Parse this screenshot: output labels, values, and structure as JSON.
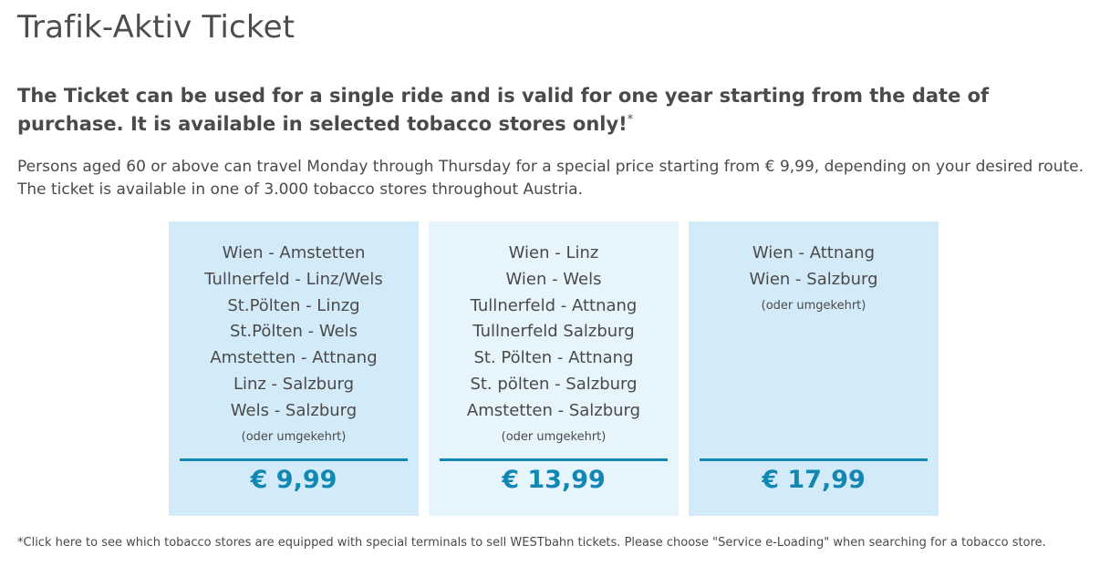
{
  "page": {
    "title": "Trafik-Aktiv Ticket",
    "lead_text": "The Ticket can be used for a single ride and is valid for one year starting from the date of purchase. It is available in selected tobacco stores only!",
    "lead_marker": "*",
    "description": "Persons aged 60 or above can travel Monday through Thursday for a special price starting from € 9,99, depending on your desired route. The ticket is available in one of 3.000 tobacco stores throughout Austria.",
    "footnote": "*Click here to see which tobacco stores are equipped with special terminals to sell WESTbahn tickets. Please choose \"Service e-Loading\" when searching for a tobacco store."
  },
  "colors": {
    "accent": "#1287b4",
    "card_dark": "#d3ebf9",
    "card_light": "#e6f4fc",
    "text": "#4a4a4a"
  },
  "cards": [
    {
      "routes": [
        "Wien - Amstetten",
        "Tullnerfeld - Linz/Wels",
        "St.Pölten - Linzg",
        "St.Pölten - Wels",
        "Amstetten - Attnang",
        "Linz - Salzburg",
        "Wels - Salzburg"
      ],
      "note": "(oder umgekehrt)",
      "price": "€ 9,99"
    },
    {
      "routes": [
        "Wien - Linz",
        "Wien - Wels",
        "Tullnerfeld - Attnang",
        "Tullnerfeld Salzburg",
        "St. Pölten - Attnang",
        "St. pölten - Salzburg",
        "Amstetten - Salzburg"
      ],
      "note": "(oder umgekehrt)",
      "price": "€ 13,99"
    },
    {
      "routes": [
        "Wien - Attnang",
        "Wien - Salzburg"
      ],
      "note": "(oder umgekehrt)",
      "price": "€ 17,99"
    }
  ]
}
